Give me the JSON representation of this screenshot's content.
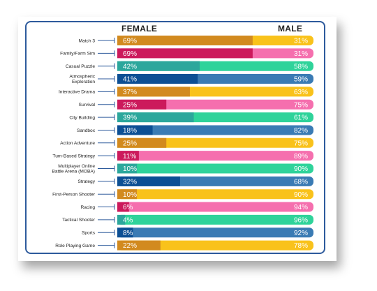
{
  "headers": {
    "female": "FEMALE",
    "male": "MALE"
  },
  "colors": {
    "pairs": [
      [
        "#d28a1f",
        "#f9c21b"
      ],
      [
        "#cc1a5c",
        "#f56fae"
      ],
      [
        "#2ca79c",
        "#2fd39a"
      ],
      [
        "#0c4f94",
        "#3a7bb4"
      ]
    ]
  },
  "chart_data": {
    "type": "bar",
    "stacked": true,
    "orientation": "horizontal",
    "series": [
      {
        "name": "FEMALE",
        "values": [
          69,
          69,
          42,
          41,
          37,
          25,
          39,
          18,
          25,
          11,
          10,
          32,
          10,
          6,
          4,
          8,
          22
        ]
      },
      {
        "name": "MALE",
        "values": [
          31,
          31,
          58,
          59,
          63,
          75,
          61,
          82,
          75,
          89,
          90,
          68,
          90,
          94,
          96,
          92,
          78
        ]
      }
    ],
    "categories": [
      "Match 3",
      "Family/Farm Sim",
      "Casual Puzzle",
      "Atmospheric Exploration",
      "Interactive Drama",
      "Survival",
      "City Building",
      "Sandbox",
      "Action Adventure",
      "Turn-Based Strategy",
      "Multiplayer Online Battle Arena (MOBA)",
      "Strategy",
      "First-Person Shooter",
      "Racing",
      "Tactical Shooter",
      "Sports",
      "Role Playing Game"
    ],
    "category_lines": [
      [
        "Match 3"
      ],
      [
        "Family/Farm Sim"
      ],
      [
        "Casual Puzzle"
      ],
      [
        "Atmospheric",
        "Exploration"
      ],
      [
        "Interactive Drama"
      ],
      [
        "Survival"
      ],
      [
        "City Building"
      ],
      [
        "Sandbox"
      ],
      [
        "Action Adventure"
      ],
      [
        "Turn-Based Strategy"
      ],
      [
        "Multiplayer Online",
        "Battle Arena (MOBA)"
      ],
      [
        "Strategy"
      ],
      [
        "First-Person Shooter"
      ],
      [
        "Racing"
      ],
      [
        "Tactical Shooter"
      ],
      [
        "Sports"
      ],
      [
        "Role Playing Game"
      ]
    ],
    "color_index": [
      0,
      1,
      2,
      3,
      0,
      1,
      2,
      3,
      0,
      1,
      2,
      3,
      0,
      1,
      2,
      3,
      0
    ],
    "value_suffix": "%",
    "xlim": [
      0,
      100
    ]
  }
}
